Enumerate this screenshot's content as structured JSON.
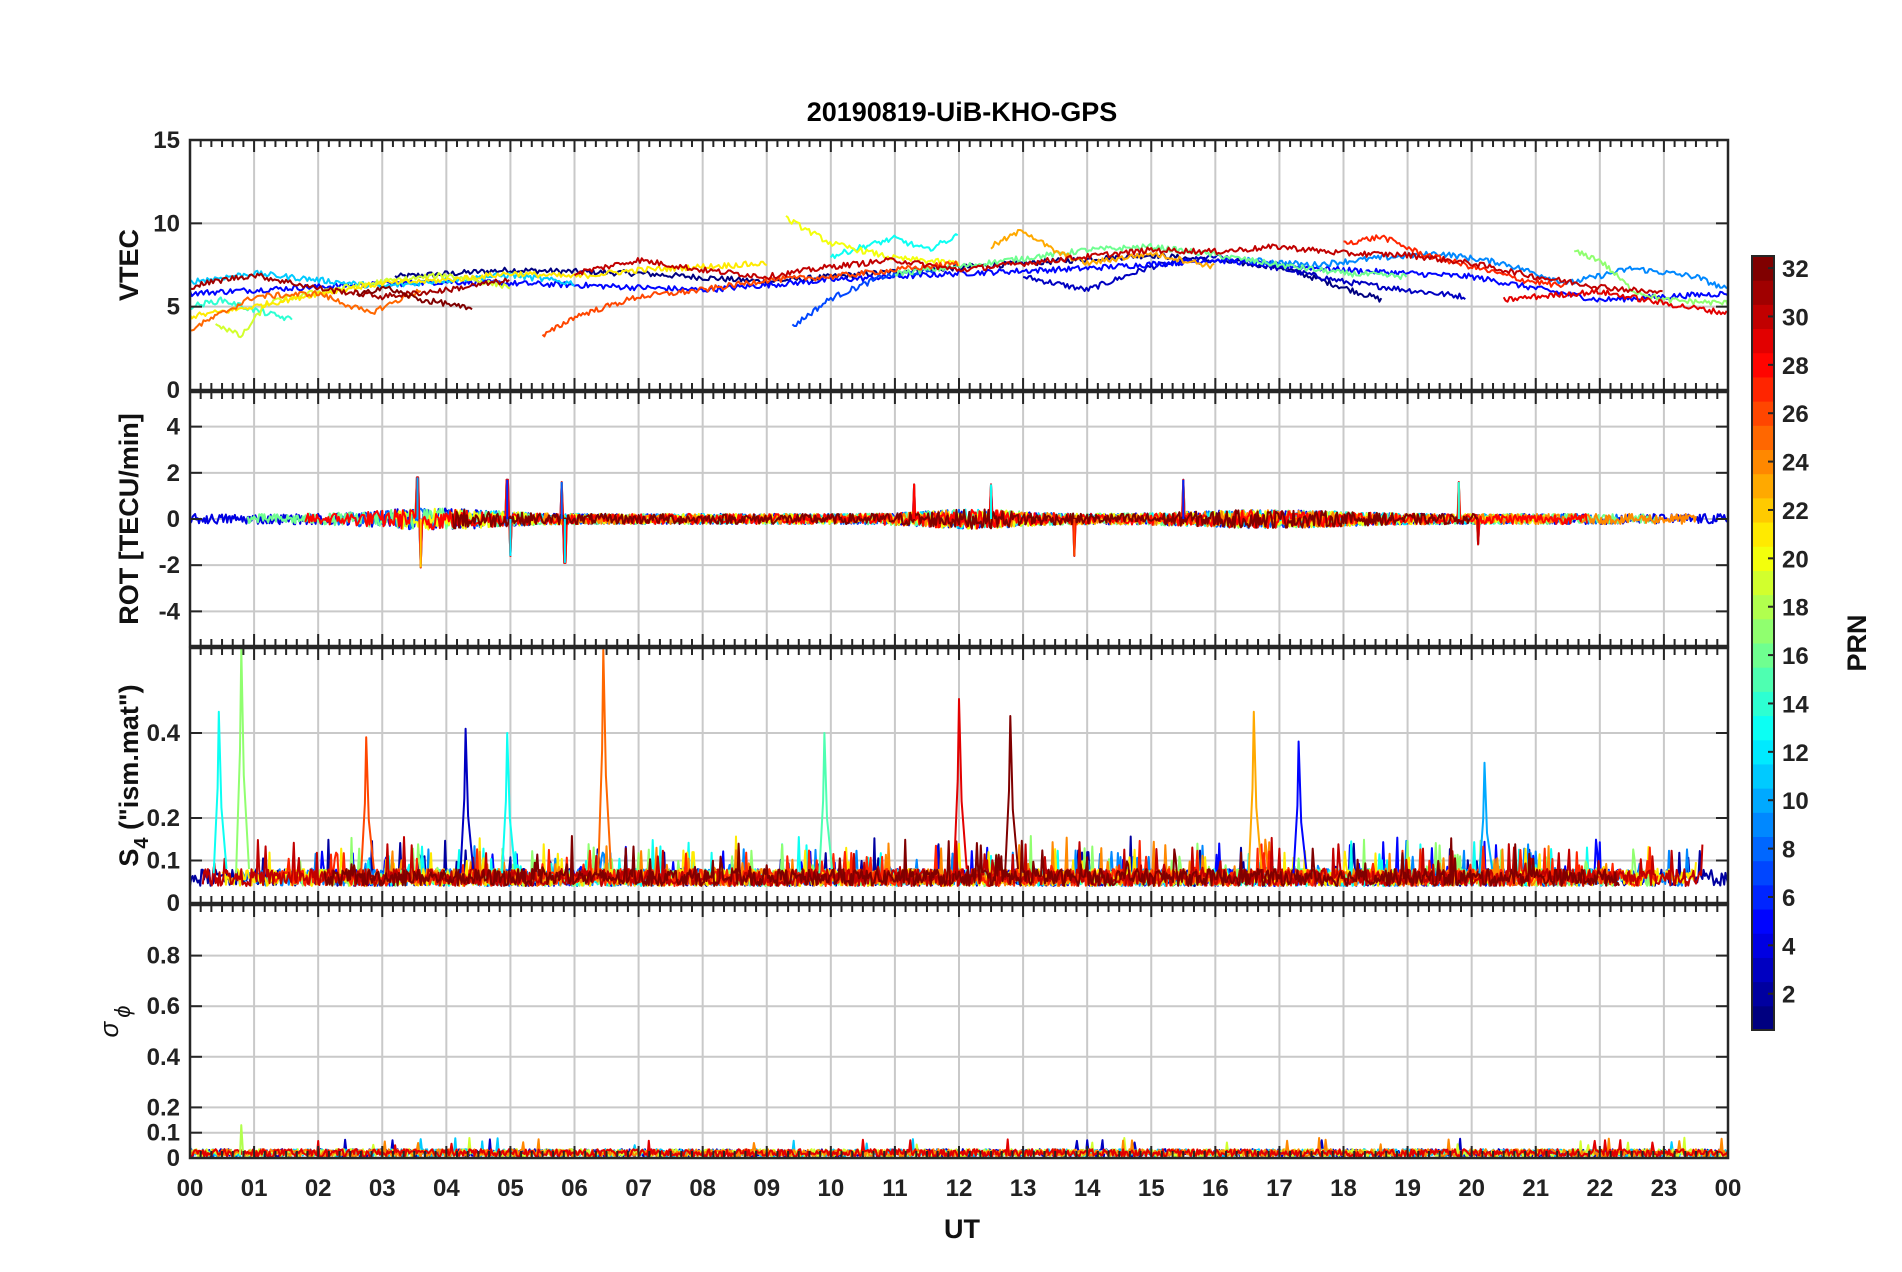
{
  "title": "20190819-UiB-KHO-GPS",
  "xlabel": "UT",
  "x_tick_labels": [
    "00",
    "01",
    "02",
    "03",
    "04",
    "05",
    "06",
    "07",
    "08",
    "09",
    "10",
    "11",
    "12",
    "13",
    "14",
    "15",
    "16",
    "17",
    "18",
    "19",
    "20",
    "21",
    "22",
    "23",
    "00"
  ],
  "colorbar": {
    "label": "PRN",
    "min": 1,
    "max": 32,
    "tick_labels": [
      "2",
      "4",
      "6",
      "8",
      "10",
      "12",
      "14",
      "16",
      "18",
      "20",
      "22",
      "24",
      "26",
      "28",
      "30",
      "32"
    ],
    "colormap": "jet"
  },
  "chart_data": [
    {
      "type": "line",
      "panel": "vtec",
      "ylabel": "VTEC",
      "ylim": [
        0,
        15
      ],
      "y_tick_labels": [
        "0",
        "5",
        "10",
        "15"
      ],
      "grid": true,
      "x_range_hours": [
        0,
        24
      ],
      "series": [
        {
          "prn": 1,
          "x": [
            3.2,
            5.0,
            7.0,
            9.0,
            11.0,
            13.0,
            15.0,
            17.0,
            18.6
          ],
          "y": [
            6.8,
            7.2,
            7.0,
            6.5,
            7.1,
            7.6,
            8.1,
            7.4,
            5.4
          ]
        },
        {
          "prn": 3,
          "x": [
            13.0,
            14.0,
            15.0,
            16.0,
            17.0,
            18.0,
            19.0,
            19.9
          ],
          "y": [
            6.8,
            6.0,
            7.4,
            8.0,
            7.3,
            6.5,
            6.0,
            5.6
          ]
        },
        {
          "prn": 5,
          "x": [
            0.0,
            2.0,
            4.0,
            6.0,
            8.0,
            10.0,
            12.0,
            14.0,
            16.0,
            18.0,
            20.0,
            22.0,
            24.0
          ],
          "y": [
            5.8,
            6.2,
            6.5,
            6.3,
            6.0,
            6.6,
            7.0,
            7.3,
            7.8,
            7.2,
            6.8,
            5.4,
            5.8
          ]
        },
        {
          "prn": 7,
          "x": [
            9.4,
            10.0,
            10.8,
            11.6
          ],
          "y": [
            3.8,
            5.5,
            6.8,
            7.2
          ]
        },
        {
          "prn": 9,
          "x": [
            16.5,
            17.5,
            18.5,
            19.5,
            20.5,
            21.5,
            22.5,
            23.5,
            24.0
          ],
          "y": [
            7.8,
            7.5,
            7.9,
            8.2,
            7.6,
            6.4,
            7.3,
            6.8,
            6.0
          ]
        },
        {
          "prn": 11,
          "x": [
            0.0,
            1.0,
            2.0,
            3.0,
            4.0,
            5.0,
            6.0
          ],
          "y": [
            6.5,
            7.0,
            6.6,
            6.2,
            6.6,
            6.9,
            6.4
          ]
        },
        {
          "prn": 13,
          "x": [
            10.0,
            10.5,
            11.0,
            11.5,
            12.0
          ],
          "y": [
            8.0,
            8.6,
            9.1,
            8.4,
            9.3
          ]
        },
        {
          "prn": 14,
          "x": [
            0.0,
            0.5,
            1.0,
            1.6
          ],
          "y": [
            5.0,
            5.4,
            4.8,
            4.2
          ]
        },
        {
          "prn": 16,
          "x": [
            11.0,
            12.0,
            13.0,
            14.0,
            15.0,
            16.0,
            17.0,
            18.0,
            19.0
          ],
          "y": [
            7.0,
            7.4,
            7.9,
            8.4,
            8.6,
            8.1,
            7.5,
            7.0,
            6.8
          ]
        },
        {
          "prn": 17,
          "x": [
            21.6,
            22.0,
            22.5,
            23.0,
            24.0
          ],
          "y": [
            8.3,
            7.8,
            6.0,
            5.4,
            5.2
          ]
        },
        {
          "prn": 19,
          "x": [
            0.4,
            0.8,
            1.2,
            2.0,
            3.0,
            4.0,
            5.0
          ],
          "y": [
            4.0,
            3.2,
            5.2,
            5.9,
            6.5,
            6.9,
            6.2
          ]
        },
        {
          "prn": 20,
          "x": [
            9.3,
            10.0,
            11.0,
            12.0
          ],
          "y": [
            10.3,
            8.8,
            7.9,
            7.6
          ]
        },
        {
          "prn": 21,
          "x": [
            0.0,
            1.0,
            2.0,
            3.0,
            4.0,
            5.0,
            6.0,
            7.0,
            8.0,
            9.0
          ],
          "y": [
            4.4,
            5.0,
            5.8,
            6.4,
            6.6,
            7.0,
            6.8,
            7.2,
            7.4,
            7.6
          ]
        },
        {
          "prn": 23,
          "x": [
            12.5,
            13.0,
            13.5,
            14.0,
            15.0,
            16.0
          ],
          "y": [
            8.6,
            9.6,
            8.3,
            7.6,
            8.2,
            7.4
          ]
        },
        {
          "prn": 25,
          "x": [
            0.0,
            0.5,
            1.0,
            2.0,
            2.8,
            3.6
          ],
          "y": [
            3.6,
            4.6,
            5.6,
            5.8,
            4.6,
            6.0
          ]
        },
        {
          "prn": 26,
          "x": [
            5.5,
            6.0,
            7.0,
            8.0,
            9.0,
            10.0,
            11.0,
            12.0
          ],
          "y": [
            3.2,
            4.4,
            5.6,
            6.0,
            6.6,
            6.8,
            7.2,
            7.6
          ]
        },
        {
          "prn": 27,
          "x": [
            18.0,
            18.6,
            19.2,
            20.0,
            20.8,
            21.5
          ],
          "y": [
            8.8,
            9.2,
            8.2,
            7.4,
            6.6,
            6.2
          ]
        },
        {
          "prn": 29,
          "x": [
            20.5,
            21.0,
            22.0,
            23.0,
            24.0
          ],
          "y": [
            5.4,
            5.6,
            5.9,
            5.2,
            4.6
          ]
        },
        {
          "prn": 30,
          "x": [
            6.0,
            7.0,
            8.0,
            9.0,
            10.0,
            11.0,
            12.0,
            13.0,
            14.0,
            15.0,
            16.0,
            17.0,
            18.0,
            19.0,
            20.0,
            21.0,
            22.0,
            23.0
          ],
          "y": [
            7.0,
            7.8,
            7.2,
            6.8,
            7.4,
            7.8,
            7.2,
            7.6,
            8.0,
            8.4,
            8.3,
            8.6,
            8.2,
            8.1,
            7.6,
            6.8,
            6.2,
            5.8
          ]
        },
        {
          "prn": 31,
          "x": [
            0.0,
            0.5,
            1.0,
            2.0,
            3.0,
            4.0,
            5.0
          ],
          "y": [
            6.2,
            6.6,
            6.9,
            6.1,
            5.6,
            6.0,
            6.6
          ]
        },
        {
          "prn": 32,
          "x": [
            2.6,
            3.0,
            3.6,
            4.0,
            4.4
          ],
          "y": [
            5.6,
            6.2,
            5.4,
            5.2,
            4.8
          ]
        }
      ]
    },
    {
      "type": "line",
      "panel": "rot",
      "ylabel": "ROT [TECU/min]",
      "ylim": [
        -5.5,
        5.5
      ],
      "y_tick_labels": [
        "-4",
        "-2",
        "0",
        "2",
        "4"
      ],
      "y_ticks": [
        -4,
        -2,
        0,
        2,
        4
      ],
      "grid": true,
      "description_values": {
        "typical_range": [
          -0.6,
          0.6
        ],
        "spikes": [
          {
            "x": 3.55,
            "y": 1.8
          },
          {
            "x": 3.6,
            "y": -2.1
          },
          {
            "x": 4.95,
            "y": 1.7
          },
          {
            "x": 5.0,
            "y": -1.6
          },
          {
            "x": 5.8,
            "y": 1.6
          },
          {
            "x": 5.85,
            "y": -1.9
          },
          {
            "x": 11.3,
            "y": 1.5
          },
          {
            "x": 12.5,
            "y": 1.5
          },
          {
            "x": 13.8,
            "y": -1.6
          },
          {
            "x": 15.5,
            "y": 1.7
          },
          {
            "x": 19.8,
            "y": 1.6
          },
          {
            "x": 20.1,
            "y": -1.1
          }
        ]
      }
    },
    {
      "type": "line",
      "panel": "s4",
      "ylabel": "S4 (\"ism.mat\")",
      "ylim": [
        0,
        0.6
      ],
      "y_tick_labels": [
        "0",
        "0.1",
        "0.2",
        "0.4"
      ],
      "y_ticks": [
        0,
        0.1,
        0.2,
        0.4
      ],
      "grid": true,
      "description_values": {
        "baseline": [
          0.04,
          0.12
        ],
        "spikes": [
          {
            "x": 0.45,
            "y": 0.45
          },
          {
            "x": 0.8,
            "y": 0.6
          },
          {
            "x": 2.75,
            "y": 0.39
          },
          {
            "x": 4.3,
            "y": 0.41
          },
          {
            "x": 4.95,
            "y": 0.4
          },
          {
            "x": 6.45,
            "y": 0.6
          },
          {
            "x": 9.9,
            "y": 0.4
          },
          {
            "x": 12.0,
            "y": 0.48
          },
          {
            "x": 12.8,
            "y": 0.44
          },
          {
            "x": 16.6,
            "y": 0.45
          },
          {
            "x": 17.3,
            "y": 0.38
          },
          {
            "x": 20.2,
            "y": 0.33
          }
        ]
      }
    },
    {
      "type": "line",
      "panel": "sigma_phi",
      "ylabel": "σ ϕ",
      "ylim": [
        0,
        1
      ],
      "y_tick_labels": [
        "0",
        "0.1",
        "0.2",
        "0.4",
        "0.6",
        "0.8"
      ],
      "y_ticks": [
        0,
        0.1,
        0.2,
        0.4,
        0.6,
        0.8
      ],
      "grid": true,
      "description_values": {
        "typical_range": [
          0.0,
          0.04
        ],
        "max": 0.13
      }
    }
  ]
}
